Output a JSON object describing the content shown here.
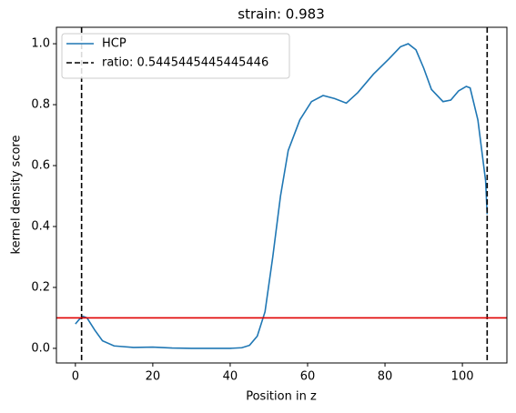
{
  "chart_data": {
    "type": "line",
    "title": "strain: 0.983",
    "xlabel": "Position in z",
    "ylabel": "kernel density score",
    "xlim": [
      -4.9,
      111.5
    ],
    "ylim": [
      -0.048,
      1.054
    ],
    "xticks": [
      0,
      20,
      40,
      60,
      80,
      100
    ],
    "yticks": [
      {
        "value": 0,
        "label": "0.0"
      },
      0.2,
      0.4,
      0.6,
      0.8,
      {
        "value": 1,
        "label": "1.0"
      }
    ],
    "series": [
      {
        "name": "HCP",
        "color": "#1f77b4",
        "x": [
          0,
          1,
          2,
          3,
          5,
          7,
          10,
          15,
          20,
          25,
          30,
          40,
          43,
          45,
          47,
          49,
          51,
          53,
          55,
          58,
          61,
          64,
          67,
          70,
          73,
          77,
          81,
          84,
          86,
          88,
          90,
          92,
          95,
          97,
          99,
          101,
          102,
          104,
          106,
          106.4
        ],
        "values": [
          0.08,
          0.095,
          0.105,
          0.1,
          0.06,
          0.025,
          0.008,
          0.003,
          0.004,
          0.001,
          0,
          0,
          0.002,
          0.01,
          0.04,
          0.12,
          0.3,
          0.5,
          0.65,
          0.75,
          0.81,
          0.83,
          0.82,
          0.805,
          0.84,
          0.9,
          0.95,
          0.99,
          1.0,
          0.98,
          0.92,
          0.85,
          0.81,
          0.815,
          0.845,
          0.86,
          0.855,
          0.75,
          0.55,
          0.44
        ]
      }
    ],
    "vlines": {
      "name": "ratio: 0.5445445445445446",
      "color": "#000000",
      "values": [
        1.6,
        106.4
      ]
    },
    "hline": {
      "value": 0.1,
      "color": "#e00000"
    },
    "legend": "upper left"
  }
}
